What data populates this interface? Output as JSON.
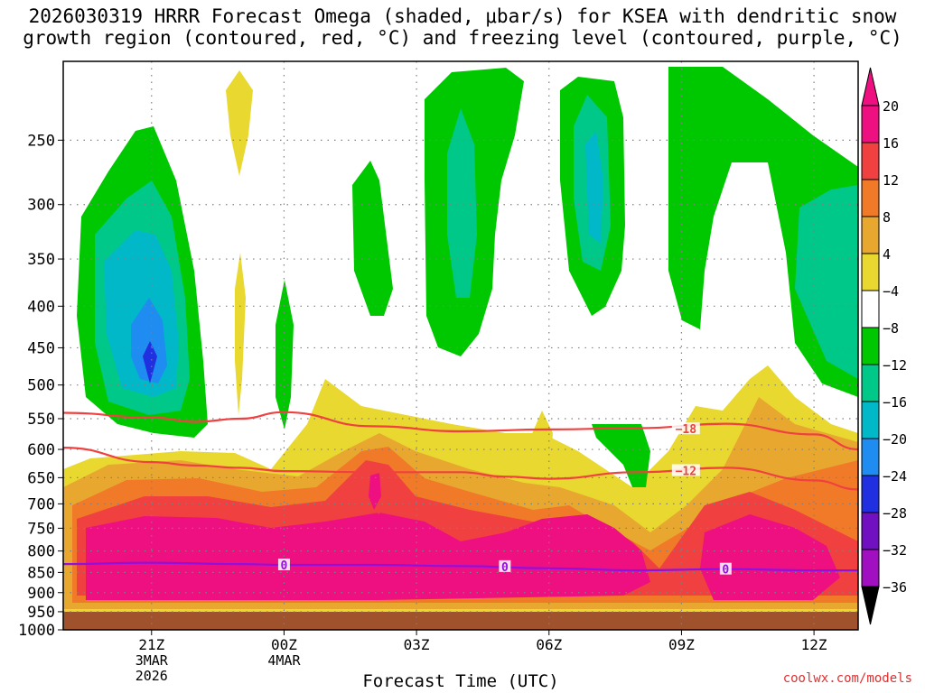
{
  "chart_data": {
    "type": "heatmap",
    "title_line1": "2026030319 HRRR Forecast Omega (shaded, μbar/s) for KSEA with dendritic snow",
    "title_line2": "growth region (contoured, red, °C) and freezing level (contoured, purple, °C)",
    "xlabel": "Forecast Time (UTC)",
    "ylabel": "",
    "x_ticks": [
      {
        "label": "21Z",
        "sub1": "3MAR",
        "sub2": "2026",
        "hour": 2
      },
      {
        "label": "00Z",
        "sub1": "4MAR",
        "sub2": "",
        "hour": 5
      },
      {
        "label": "03Z",
        "sub1": "",
        "sub2": "",
        "hour": 8
      },
      {
        "label": "06Z",
        "sub1": "",
        "sub2": "",
        "hour": 11
      },
      {
        "label": "09Z",
        "sub1": "",
        "sub2": "",
        "hour": 14
      },
      {
        "label": "12Z",
        "sub1": "",
        "sub2": "",
        "hour": 17
      }
    ],
    "x_range_hours": [
      0,
      18
    ],
    "y_ticks": [
      250,
      300,
      350,
      400,
      450,
      500,
      550,
      600,
      650,
      700,
      750,
      800,
      850,
      900,
      950,
      1000
    ],
    "y_range_mb": [
      200,
      1000
    ],
    "colorbar": {
      "labels": [
        "20",
        "16",
        "12",
        "8",
        "4",
        "−4",
        "−8",
        "−12",
        "−16",
        "−20",
        "−24",
        "−28",
        "−32",
        "−36"
      ],
      "colors": [
        "#ee1080",
        "#f04040",
        "#f07a28",
        "#e8a830",
        "#e8d830",
        "#ffffff",
        "#00c800",
        "#00c888",
        "#00b8c8",
        "#1e8cf0",
        "#2030e0",
        "#7010c0",
        "#a010c0",
        "#a8a8a8"
      ],
      "top_arrow": "#ee1080",
      "bottom_arrow": "#000000"
    },
    "contours": [
      {
        "name": "dendritic-top",
        "label": "−18",
        "color": "#f04040",
        "points": [
          [
            0,
            541
          ],
          [
            2,
            548
          ],
          [
            3,
            555
          ],
          [
            4,
            550
          ],
          [
            5,
            540
          ],
          [
            7,
            562
          ],
          [
            9,
            570
          ],
          [
            11,
            567
          ],
          [
            13,
            565
          ],
          [
            15,
            558
          ],
          [
            17,
            575
          ],
          [
            18,
            600
          ]
        ]
      },
      {
        "name": "dendritic-bottom",
        "label": "−12",
        "color": "#f04040",
        "points": [
          [
            0,
            597
          ],
          [
            2,
            622
          ],
          [
            3,
            628
          ],
          [
            4,
            632
          ],
          [
            5,
            638
          ],
          [
            7,
            640
          ],
          [
            9,
            640
          ],
          [
            10,
            648
          ],
          [
            11,
            652
          ],
          [
            13,
            640
          ],
          [
            15,
            632
          ],
          [
            17,
            655
          ],
          [
            18,
            672
          ]
        ]
      },
      {
        "name": "freezing-level",
        "label": "0",
        "color": "#9010e0",
        "points": [
          [
            0,
            830
          ],
          [
            2,
            827
          ],
          [
            4,
            830
          ],
          [
            5,
            832
          ],
          [
            7,
            832
          ],
          [
            9,
            835
          ],
          [
            11,
            840
          ],
          [
            13,
            845
          ],
          [
            15,
            842
          ],
          [
            17,
            845
          ],
          [
            18,
            845
          ]
        ]
      }
    ],
    "contour_labels": [
      {
        "text": "−18",
        "hour": 14.1,
        "mb": 566,
        "color": "#f04040"
      },
      {
        "text": "−12",
        "hour": 14.1,
        "mb": 637,
        "color": "#f04040"
      },
      {
        "text": "0",
        "hour": 5,
        "mb": 832,
        "color": "#9010e0"
      },
      {
        "text": "0",
        "hour": 10,
        "mb": 836,
        "color": "#9010e0"
      },
      {
        "text": "0",
        "hour": 15,
        "mb": 842,
        "color": "#9010e0"
      }
    ]
  },
  "credit": "coolwx.com/models"
}
